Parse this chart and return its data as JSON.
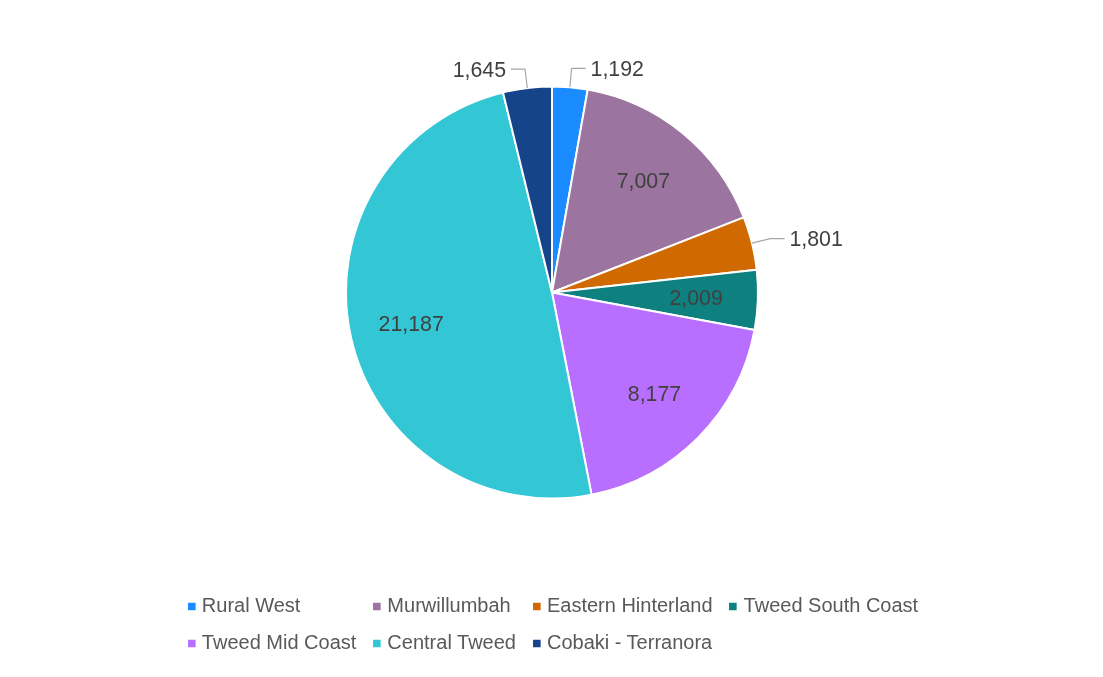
{
  "chart_data": {
    "type": "pie",
    "categories": [
      "Rural West",
      "Murwillumbah",
      "Eastern Hinterland",
      "Tweed South Coast",
      "Tweed Mid Coast",
      "Central Tweed",
      "Cobaki - Terranora"
    ],
    "values": [
      1192,
      7007,
      1801,
      2009,
      8177,
      21187,
      1645
    ],
    "colors": [
      "#1a8cff",
      "#9c74a0",
      "#d06a00",
      "#0e8080",
      "#b86fff",
      "#33c6d4",
      "#15448a"
    ],
    "data_labels": true,
    "value_labels": [
      "1,192",
      "7,007",
      "1,801",
      "2,009",
      "8,177",
      "21,187",
      "1,645"
    ],
    "legend": "bottom"
  }
}
